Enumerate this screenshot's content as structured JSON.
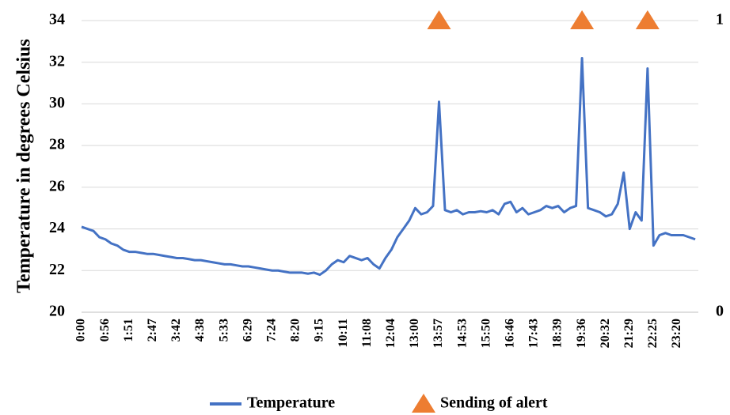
{
  "chart_data": {
    "type": "line",
    "y_label": "Temperature in degrees Celsius",
    "categories": [
      "0:00",
      null,
      null,
      null,
      "0:56",
      null,
      null,
      null,
      "1:51",
      null,
      null,
      null,
      "2:47",
      null,
      null,
      null,
      "3:42",
      null,
      null,
      null,
      "4:38",
      null,
      null,
      null,
      "5:33",
      null,
      null,
      null,
      "6:29",
      null,
      null,
      null,
      "7:24",
      null,
      null,
      null,
      "8:20",
      null,
      null,
      null,
      "9:15",
      null,
      null,
      null,
      "10:11",
      null,
      null,
      null,
      "11:08",
      null,
      null,
      null,
      "12:04",
      null,
      null,
      null,
      "13:00",
      null,
      null,
      null,
      "13:57",
      null,
      null,
      null,
      "14:53",
      null,
      null,
      null,
      "15:50",
      null,
      null,
      null,
      "16:46",
      null,
      null,
      null,
      "17:43",
      null,
      null,
      null,
      "18:39",
      null,
      null,
      null,
      "19:36",
      null,
      null,
      null,
      "20:32",
      null,
      null,
      null,
      "21:29",
      null,
      null,
      null,
      "22:25",
      null,
      null,
      null,
      "23:20",
      null,
      null,
      null
    ],
    "series": [
      {
        "name": "Temperature",
        "color": "#4472c4",
        "values": [
          24.1,
          24.0,
          23.9,
          23.6,
          23.5,
          23.3,
          23.2,
          23.0,
          22.9,
          22.9,
          22.85,
          22.8,
          22.8,
          22.75,
          22.7,
          22.65,
          22.6,
          22.6,
          22.55,
          22.5,
          22.5,
          22.45,
          22.4,
          22.35,
          22.3,
          22.3,
          22.25,
          22.2,
          22.2,
          22.15,
          22.1,
          22.05,
          22.0,
          22.0,
          21.95,
          21.9,
          21.9,
          21.9,
          21.85,
          21.9,
          21.8,
          22.0,
          22.3,
          22.5,
          22.4,
          22.7,
          22.6,
          22.5,
          22.6,
          22.3,
          22.1,
          22.6,
          23.0,
          23.6,
          24.0,
          24.4,
          25.0,
          24.7,
          24.8,
          25.1,
          30.1,
          24.9,
          24.8,
          24.9,
          24.7,
          24.8,
          24.8,
          24.85,
          24.8,
          24.9,
          24.7,
          25.2,
          25.3,
          24.8,
          25.0,
          24.7,
          24.8,
          24.9,
          25.1,
          25.0,
          25.1,
          24.8,
          25.0,
          25.1,
          32.2,
          25.0,
          24.9,
          24.8,
          24.6,
          24.7,
          25.2,
          26.7,
          24.0,
          24.8,
          24.4,
          31.7,
          23.2,
          23.7,
          23.8,
          23.7,
          23.7,
          23.7,
          23.6,
          23.5
        ]
      },
      {
        "name": "Sending of alert",
        "color": "#ed7d31",
        "axis": "y2",
        "marker": "triangle",
        "values": [
          null,
          null,
          null,
          null,
          null,
          null,
          null,
          null,
          null,
          null,
          null,
          null,
          null,
          null,
          null,
          null,
          null,
          null,
          null,
          null,
          null,
          null,
          null,
          null,
          null,
          null,
          null,
          null,
          null,
          null,
          null,
          null,
          null,
          null,
          null,
          null,
          null,
          null,
          null,
          null,
          null,
          null,
          null,
          null,
          null,
          null,
          null,
          null,
          null,
          null,
          null,
          null,
          null,
          null,
          null,
          null,
          null,
          null,
          null,
          null,
          1,
          null,
          null,
          null,
          null,
          null,
          null,
          null,
          null,
          null,
          null,
          null,
          null,
          null,
          null,
          null,
          null,
          null,
          null,
          null,
          null,
          null,
          null,
          null,
          1,
          null,
          null,
          null,
          null,
          null,
          null,
          null,
          null,
          null,
          null,
          1,
          null,
          null,
          null,
          null,
          null,
          null,
          null,
          null
        ]
      }
    ],
    "ylim": [
      20,
      34
    ],
    "yticks": [
      20,
      22,
      24,
      26,
      28,
      30,
      32,
      34
    ],
    "y2lim": [
      0,
      1
    ],
    "y2ticks": [
      0,
      1
    ],
    "grid": true,
    "legend": "bottom"
  }
}
